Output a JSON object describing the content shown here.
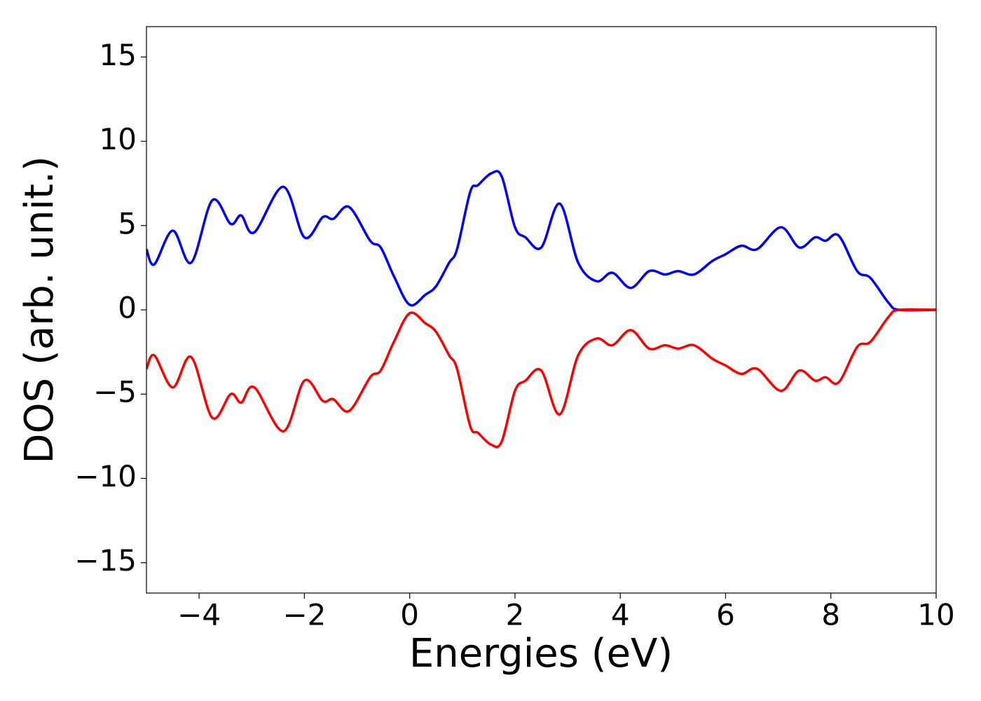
{
  "chart_data": {
    "type": "line",
    "x_label": "Energies (eV)",
    "y_label": "DOS (arb. unit.)",
    "x": [
      -5,
      -4.85,
      -4.5,
      -4.15,
      -3.75,
      -3.4,
      -3.2,
      -2.95,
      -2.4,
      -2.0,
      -1.65,
      -1.45,
      -1.15,
      -0.75,
      -0.55,
      -0.3,
      0,
      0.3,
      0.5,
      0.75,
      0.9,
      1.15,
      1.3,
      1.55,
      1.75,
      2.0,
      2.2,
      2.5,
      2.85,
      3.2,
      3.55,
      3.85,
      4.2,
      4.55,
      4.85,
      5.1,
      5.4,
      5.75,
      6.0,
      6.3,
      6.6,
      7.05,
      7.4,
      7.7,
      7.9,
      8.15,
      8.5,
      8.75,
      9.1,
      9.3,
      10
    ],
    "series": [
      {
        "color": "#0000ff",
        "values": [
          3.6,
          2.7,
          4.7,
          2.8,
          6.5,
          5.1,
          5.6,
          4.6,
          7.3,
          4.3,
          5.5,
          5.4,
          6.1,
          4.1,
          3.7,
          2.0,
          0.3,
          0.9,
          1.4,
          2.8,
          3.6,
          7.0,
          7.4,
          8.1,
          7.9,
          4.9,
          4.3,
          3.7,
          6.3,
          2.8,
          1.7,
          2.2,
          1.3,
          2.3,
          2.1,
          2.3,
          2.1,
          2.9,
          3.3,
          3.8,
          3.6,
          4.9,
          3.7,
          4.3,
          4.1,
          4.4,
          2.3,
          1.9,
          0.4,
          0.0,
          0.0
        ]
      },
      {
        "color": "#ff0000",
        "values": [
          -3.5,
          -2.7,
          -4.6,
          -2.8,
          -6.4,
          -5.0,
          -5.5,
          -4.6,
          -7.2,
          -4.2,
          -5.4,
          -5.3,
          -6.0,
          -4.0,
          -3.6,
          -1.9,
          -0.2,
          -0.8,
          -1.3,
          -2.7,
          -3.5,
          -6.9,
          -7.3,
          -8.0,
          -7.8,
          -4.8,
          -4.2,
          -3.6,
          -6.2,
          -2.7,
          -1.7,
          -2.1,
          -1.2,
          -2.3,
          -2.1,
          -2.3,
          -2.1,
          -2.9,
          -3.3,
          -3.8,
          -3.5,
          -4.8,
          -3.6,
          -4.2,
          -4.0,
          -4.3,
          -2.2,
          -1.9,
          -0.4,
          0.0,
          0.0
        ]
      }
    ],
    "xlim": [
      -5,
      10
    ],
    "ylim": [
      -16.8,
      16.8
    ],
    "xticks": [
      {
        "value": -4,
        "label": "−4"
      },
      {
        "value": -2,
        "label": "−2"
      },
      0,
      2,
      4,
      6,
      8,
      10
    ],
    "yticks": [
      {
        "value": -15,
        "label": "−15"
      },
      {
        "value": -10,
        "label": "−10"
      },
      {
        "value": -5,
        "label": "−5"
      },
      0,
      5,
      10,
      15
    ]
  }
}
